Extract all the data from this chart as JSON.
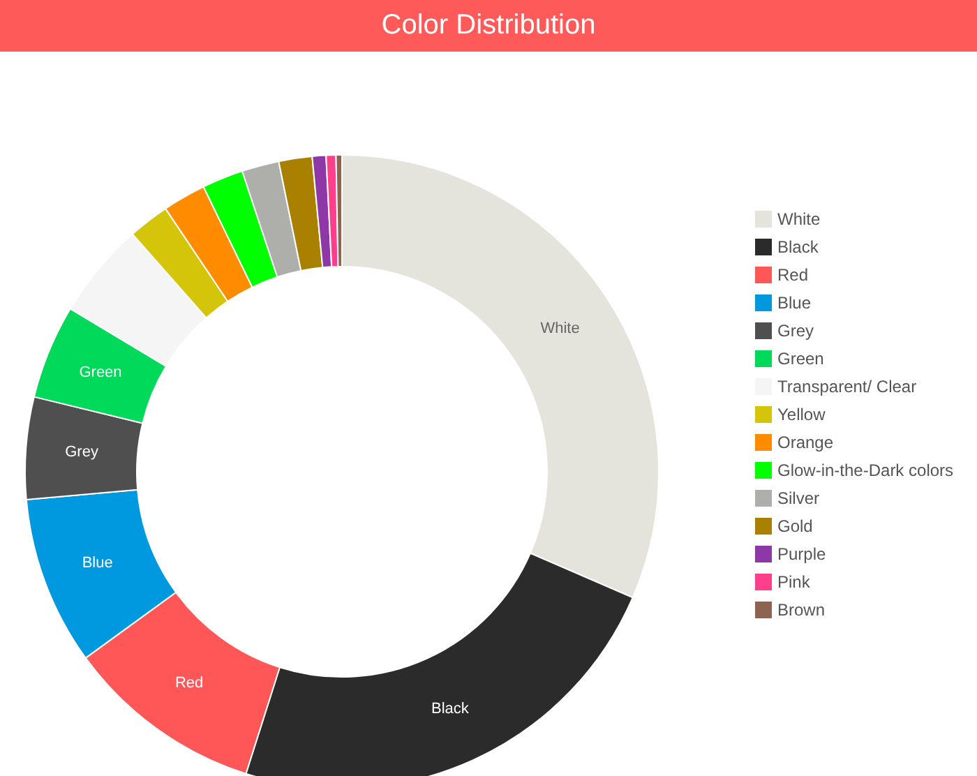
{
  "chart_data": {
    "type": "donut",
    "title": "Color Distribution",
    "categories": [
      "White",
      "Black",
      "Red",
      "Blue",
      "Grey",
      "Green",
      "Transparent/ Clear",
      "Yellow",
      "Orange",
      "Glow-in-the-Dark colors",
      "Silver",
      "Gold",
      "Purple",
      "Pink",
      "Brown"
    ],
    "values": [
      31.5,
      23.4,
      10.1,
      8.6,
      5.2,
      4.8,
      4.9,
      2.1,
      2.2,
      2.1,
      1.9,
      1.7,
      0.7,
      0.5,
      0.3
    ],
    "colors": [
      "#e4e4dc",
      "#2b2b2b",
      "#ff5757",
      "#0099e0",
      "#4f4f4f",
      "#00d95a",
      "#f5f5f5",
      "#d4c40a",
      "#ff8c00",
      "#00ff00",
      "#aeaeaa",
      "#a98000",
      "#8e38a8",
      "#ff3f8c",
      "#8c6450"
    ],
    "value_labels": [
      "White",
      "Black",
      "Red",
      "Blue",
      "Grey",
      "Green",
      null,
      null,
      null,
      null,
      null,
      null,
      null,
      null,
      null
    ],
    "legend": "right"
  }
}
